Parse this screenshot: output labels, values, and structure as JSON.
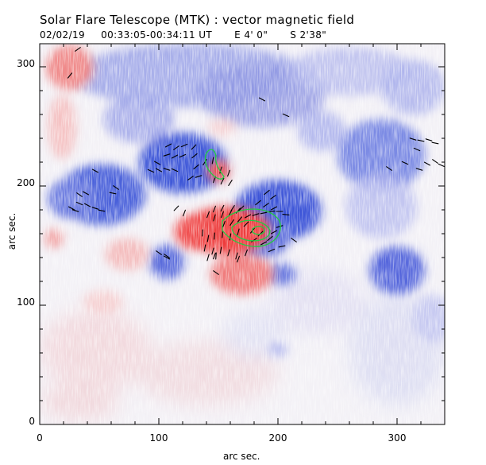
{
  "title": "Solar Flare Telescope (MTK) : vector magnetic field",
  "subtitle": {
    "date": "02/02/19",
    "time_range": "00:33:05-00:34:11 UT",
    "lon": "E 4' 0\"",
    "lat": "S 2'38\""
  },
  "xlabel": "arc sec.",
  "ylabel": "arc sec.",
  "x_ticks": [
    "0",
    "100",
    "200",
    "300"
  ],
  "y_ticks": [
    "0",
    "100",
    "200",
    "300"
  ],
  "x_range": [
    0,
    340
  ],
  "y_range": [
    0,
    320
  ],
  "colors": {
    "positive_polarity": "#ee2a2a",
    "negative_polarity": "#2a4ad8",
    "contour": "#22cc44",
    "vectors": "#000000"
  }
}
